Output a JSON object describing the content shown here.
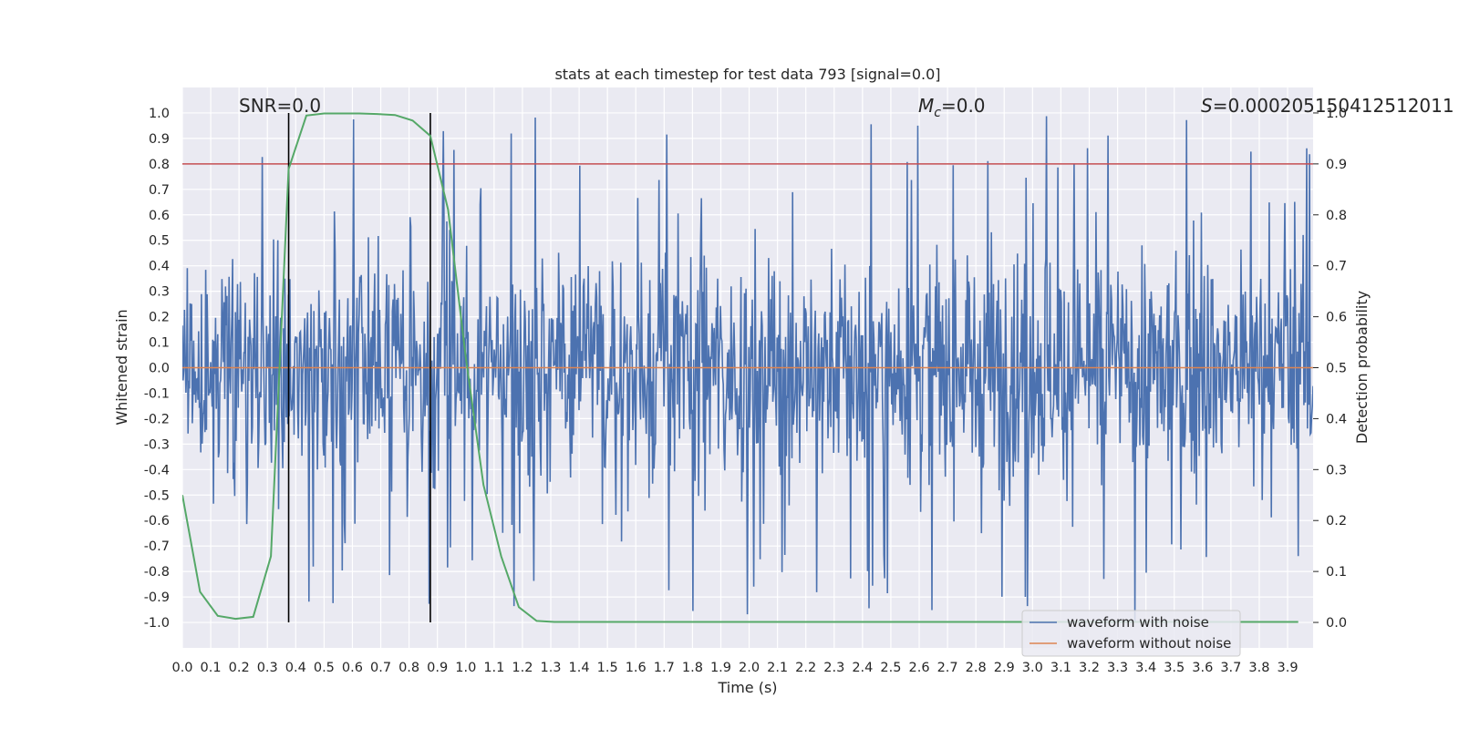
{
  "chart_data": {
    "type": "line",
    "title": "stats at each timestep for test data 793 [signal=0.0]",
    "xlabel": "Time (s)",
    "ylabel": "Whitened strain",
    "ylabel_right": "Detection probability",
    "xlim": [
      0.0,
      3.99
    ],
    "ylim": [
      -1.1,
      1.1
    ],
    "ylim_right": [
      -0.05,
      1.05
    ],
    "x_ticks": [
      "0.0",
      "0.1",
      "0.2",
      "0.3",
      "0.4",
      "0.5",
      "0.6",
      "0.7",
      "0.8",
      "0.9",
      "1.0",
      "1.1",
      "1.2",
      "1.3",
      "1.4",
      "1.5",
      "1.6",
      "1.7",
      "1.8",
      "1.9",
      "2.0",
      "2.1",
      "2.2",
      "2.3",
      "2.4",
      "2.5",
      "2.6",
      "2.7",
      "2.8",
      "2.9",
      "3.0",
      "3.1",
      "3.2",
      "3.3",
      "3.4",
      "3.5",
      "3.6",
      "3.7",
      "3.8",
      "3.9"
    ],
    "y_ticks": [
      "1.0",
      "0.9",
      "0.8",
      "0.7",
      "0.6",
      "0.5",
      "0.4",
      "0.3",
      "0.2",
      "0.1",
      "0.0",
      "-0.1",
      "-0.2",
      "-0.3",
      "-0.4",
      "-0.5",
      "-0.6",
      "-0.7",
      "-0.8",
      "-0.9",
      "-1.0"
    ],
    "y_ticks_right": [
      "1.0",
      "0.9",
      "0.8",
      "0.7",
      "0.6",
      "0.5",
      "0.4",
      "0.3",
      "0.2",
      "0.1",
      "0.0"
    ],
    "annotations": {
      "snr": "SNR=0.0",
      "mc_symbol": "M",
      "mc_sub": "c",
      "mc_value": "=0.0",
      "s_symbol": "S",
      "s_value": "=0.000205150412512011"
    },
    "threshold": {
      "value": 0.9,
      "axis": "right",
      "color": "#c44e52"
    },
    "vlines": [
      0.375,
      0.875
    ],
    "series": [
      {
        "name": "waveform with noise",
        "color": "#4c72b0",
        "style": "dense noise trace spanning roughly -1.0 to 1.0 whitened strain",
        "noise_sigma": 0.22,
        "samples": 1600
      },
      {
        "name": "waveform without noise",
        "color": "#dd8452",
        "values_constant": 0.0
      },
      {
        "name": "detection probability",
        "color": "#55a868",
        "axis": "right",
        "x": [
          0.0,
          0.0625,
          0.125,
          0.1875,
          0.25,
          0.3125,
          0.375,
          0.4375,
          0.5,
          0.5625,
          0.625,
          0.6875,
          0.75,
          0.8125,
          0.875,
          0.9375,
          1.0,
          1.0625,
          1.125,
          1.1875,
          1.25,
          1.3125,
          1.375,
          1.4375,
          1.5,
          1.5625,
          1.625,
          1.6875,
          1.75,
          1.8125,
          1.875,
          1.9375,
          2.0,
          2.0625,
          2.125,
          2.1875,
          2.25,
          2.3125,
          2.375,
          2.4375,
          2.5,
          2.5625,
          2.625,
          2.6875,
          2.75,
          2.8125,
          2.875,
          2.9375,
          3.0,
          3.0625,
          3.125,
          3.1875,
          3.25,
          3.3125,
          3.375,
          3.4375,
          3.5,
          3.5625,
          3.625,
          3.6875,
          3.75,
          3.8125,
          3.875,
          3.9375
        ],
        "values": [
          0.25,
          0.06,
          0.013,
          0.007,
          0.011,
          0.13,
          0.89,
          0.995,
          0.999,
          0.999,
          0.999,
          0.998,
          0.996,
          0.985,
          0.955,
          0.81,
          0.52,
          0.27,
          0.13,
          0.03,
          0.003,
          0.001,
          0.001,
          0.001,
          0.001,
          0.001,
          0.001,
          0.001,
          0.001,
          0.001,
          0.001,
          0.001,
          0.001,
          0.001,
          0.001,
          0.001,
          0.001,
          0.001,
          0.001,
          0.001,
          0.001,
          0.001,
          0.001,
          0.001,
          0.001,
          0.001,
          0.001,
          0.001,
          0.001,
          0.001,
          0.001,
          0.001,
          0.001,
          0.001,
          0.001,
          0.001,
          0.001,
          0.001,
          0.001,
          0.001,
          0.001,
          0.001,
          0.001,
          0.001
        ]
      }
    ],
    "legend": {
      "placement": "bottom-right",
      "items": [
        "waveform with noise",
        "waveform without noise"
      ]
    }
  }
}
